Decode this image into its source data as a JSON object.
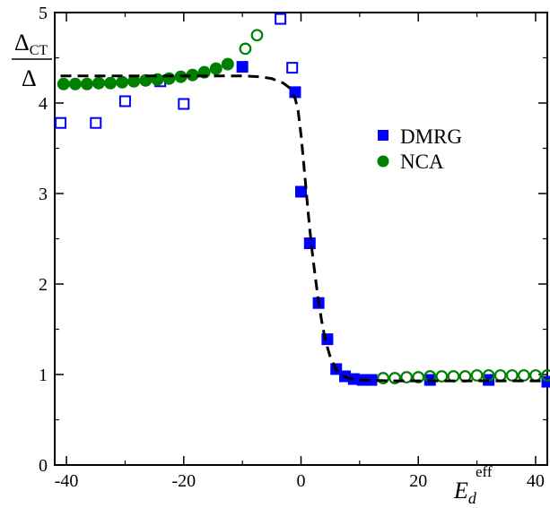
{
  "chart_data": {
    "type": "scatter",
    "xlim": [
      -42,
      42
    ],
    "ylim": [
      0,
      5
    ],
    "xticks": [
      -40,
      -20,
      0,
      20,
      40
    ],
    "yticks": [
      0,
      1,
      2,
      3,
      4,
      5
    ],
    "xtick_labels": [
      "-40",
      "-20",
      "0",
      "20",
      "40"
    ],
    "ytick_labels": [
      "0",
      "1",
      "2",
      "3",
      "4",
      "5"
    ],
    "xlabel": {
      "main": "E",
      "sub": "d",
      "sup": "eff"
    },
    "ylabel": {
      "numerator_main": "Δ",
      "numerator_sub": "CT",
      "denominator": "Δ"
    },
    "legend": {
      "placement": "right-middle",
      "entries": [
        {
          "label": "DMRG",
          "marker": "square",
          "color": "#0000ff"
        },
        {
          "label": "NCA",
          "marker": "circle",
          "color": "#008000"
        }
      ]
    },
    "series": [
      {
        "name": "DMRG",
        "marker": "square",
        "color": "#0000ff",
        "filled": [
          {
            "x": -10,
            "y": 4.4
          },
          {
            "x": -1,
            "y": 4.12
          },
          {
            "x": 0,
            "y": 3.02
          },
          {
            "x": 1.5,
            "y": 2.45
          },
          {
            "x": 3,
            "y": 1.79
          },
          {
            "x": 4.5,
            "y": 1.39
          },
          {
            "x": 6,
            "y": 1.06
          },
          {
            "x": 7.5,
            "y": 0.98
          },
          {
            "x": 9,
            "y": 0.95
          },
          {
            "x": 10.5,
            "y": 0.94
          },
          {
            "x": 12,
            "y": 0.94
          },
          {
            "x": 22,
            "y": 0.94
          },
          {
            "x": 32,
            "y": 0.94
          },
          {
            "x": 42,
            "y": 0.92
          }
        ],
        "hollow": [
          {
            "x": -41,
            "y": 3.78
          },
          {
            "x": -35,
            "y": 3.78
          },
          {
            "x": -30,
            "y": 4.02
          },
          {
            "x": -24,
            "y": 4.24
          },
          {
            "x": -20,
            "y": 3.99
          },
          {
            "x": -3.5,
            "y": 4.93
          },
          {
            "x": -1.5,
            "y": 4.39
          }
        ]
      },
      {
        "name": "NCA",
        "marker": "circle",
        "color": "#008000",
        "filled": [
          {
            "x": -40.5,
            "y": 4.21
          },
          {
            "x": -38.5,
            "y": 4.21
          },
          {
            "x": -36.5,
            "y": 4.21
          },
          {
            "x": -34.5,
            "y": 4.22
          },
          {
            "x": -32.5,
            "y": 4.22
          },
          {
            "x": -30.5,
            "y": 4.23
          },
          {
            "x": -28.5,
            "y": 4.24
          },
          {
            "x": -26.5,
            "y": 4.25
          },
          {
            "x": -24.5,
            "y": 4.26
          },
          {
            "x": -22.5,
            "y": 4.27
          },
          {
            "x": -20.5,
            "y": 4.29
          },
          {
            "x": -18.5,
            "y": 4.31
          },
          {
            "x": -16.5,
            "y": 4.34
          },
          {
            "x": -14.5,
            "y": 4.38
          },
          {
            "x": -12.5,
            "y": 4.43
          }
        ],
        "hollow": [
          {
            "x": -9.5,
            "y": 4.6
          },
          {
            "x": -7.5,
            "y": 4.75
          },
          {
            "x": 14,
            "y": 0.96
          },
          {
            "x": 16,
            "y": 0.96
          },
          {
            "x": 18,
            "y": 0.97
          },
          {
            "x": 20,
            "y": 0.97
          },
          {
            "x": 22,
            "y": 0.98
          },
          {
            "x": 24,
            "y": 0.98
          },
          {
            "x": 26,
            "y": 0.98
          },
          {
            "x": 28,
            "y": 0.98
          },
          {
            "x": 30,
            "y": 0.99
          },
          {
            "x": 32,
            "y": 0.99
          },
          {
            "x": 34,
            "y": 0.99
          },
          {
            "x": 36,
            "y": 0.99
          },
          {
            "x": 38,
            "y": 0.99
          },
          {
            "x": 40,
            "y": 0.99
          },
          {
            "x": 42,
            "y": 0.99
          }
        ]
      },
      {
        "name": "",
        "type": "line",
        "style": "dashed",
        "color": "#000000",
        "points": [
          {
            "x": -41,
            "y": 4.3
          },
          {
            "x": -30,
            "y": 4.3
          },
          {
            "x": -20,
            "y": 4.3
          },
          {
            "x": -10,
            "y": 4.3
          },
          {
            "x": -7,
            "y": 4.29
          },
          {
            "x": -5,
            "y": 4.27
          },
          {
            "x": -3,
            "y": 4.22
          },
          {
            "x": -2,
            "y": 4.17
          },
          {
            "x": -1,
            "y": 4.05
          },
          {
            "x": -0.5,
            "y": 3.92
          },
          {
            "x": 0,
            "y": 3.65
          },
          {
            "x": 0.5,
            "y": 3.3
          },
          {
            "x": 1,
            "y": 2.95
          },
          {
            "x": 1.5,
            "y": 2.6
          },
          {
            "x": 2,
            "y": 2.3
          },
          {
            "x": 2.5,
            "y": 2.05
          },
          {
            "x": 3,
            "y": 1.8
          },
          {
            "x": 3.5,
            "y": 1.6
          },
          {
            "x": 4,
            "y": 1.43
          },
          {
            "x": 4.5,
            "y": 1.3
          },
          {
            "x": 5,
            "y": 1.19
          },
          {
            "x": 6,
            "y": 1.05
          },
          {
            "x": 7,
            "y": 0.99
          },
          {
            "x": 8,
            "y": 0.96
          },
          {
            "x": 10,
            "y": 0.94
          },
          {
            "x": 15,
            "y": 0.93
          },
          {
            "x": 20,
            "y": 0.93
          },
          {
            "x": 30,
            "y": 0.93
          },
          {
            "x": 42,
            "y": 0.93
          }
        ]
      }
    ]
  }
}
